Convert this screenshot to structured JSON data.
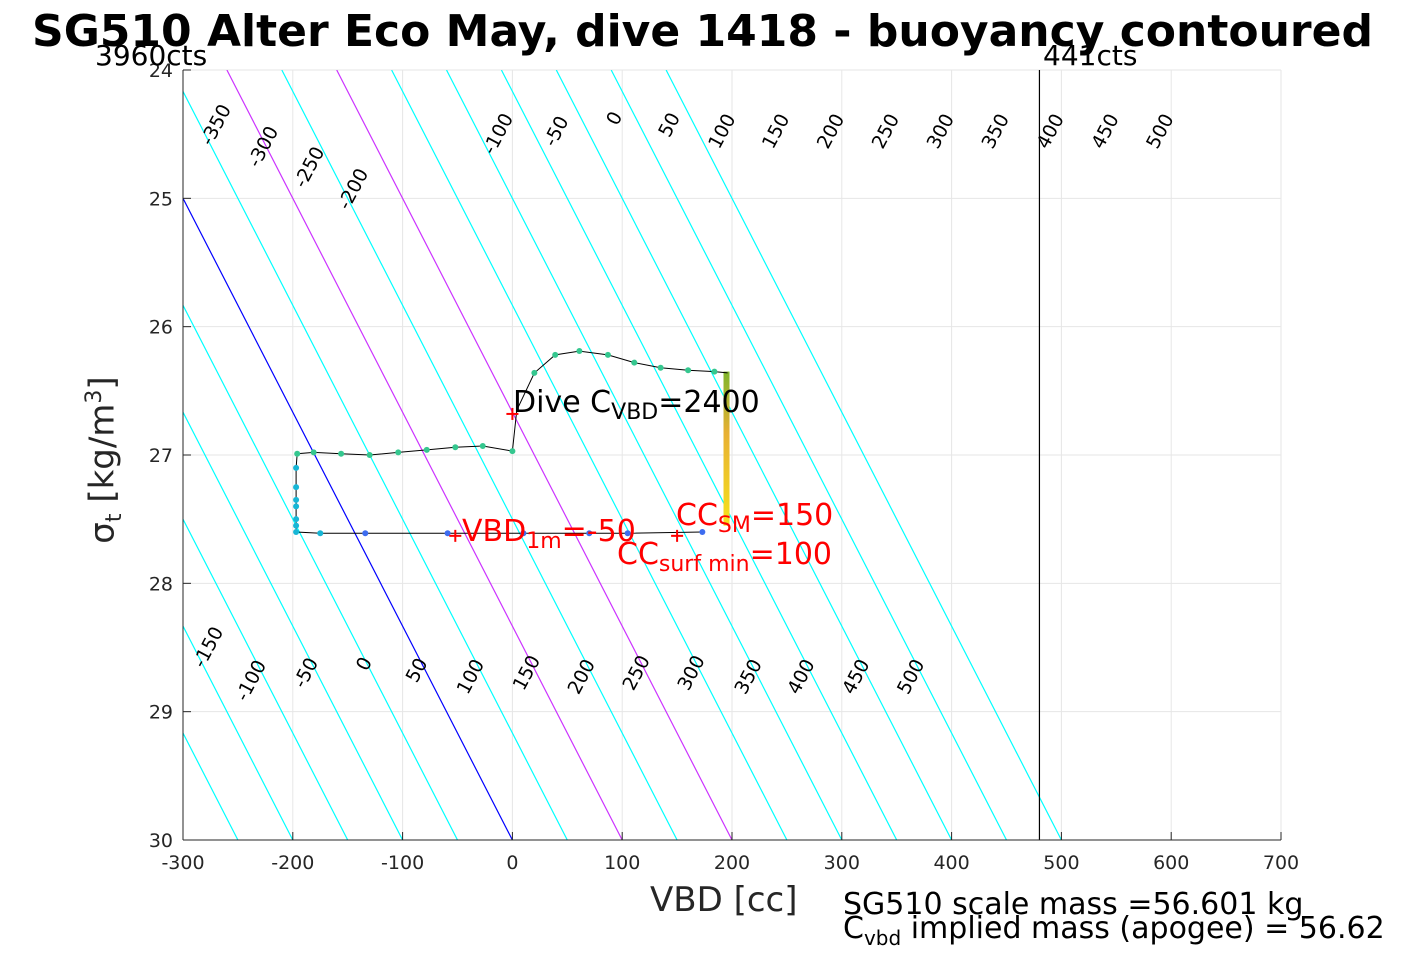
{
  "title": "SG510 Alter Eco May, dive 1418 - buoyancy contoured",
  "counts": {
    "left": "3960cts",
    "right": "441cts"
  },
  "axes": {
    "xlabel": "VBD [cc]",
    "ylabel_prefix": "σ",
    "ylabel_sub": "t",
    "ylabel_unit_open": " [kg/m",
    "ylabel_sup": "3",
    "ylabel_unit_close": "]"
  },
  "annotations": {
    "dive_cvbd": {
      "prefix": "Dive C",
      "sub": "VBD",
      "suffix": "=2400"
    },
    "vbd_1m": {
      "prefix": "VBD",
      "sub": "1m",
      "suffix": "=-50"
    },
    "cc_sm": {
      "prefix": "CC",
      "sub": "SM",
      "suffix": "=150"
    },
    "cc_surf": {
      "prefix": "CC",
      "sub": "surf min",
      "suffix": "=100"
    }
  },
  "footer": {
    "line1": "SG510 scale mass =56.601 kg",
    "line2_prefix": "C",
    "line2_sub": "vbd",
    "line2_suffix": " implied mass (apogee) = 56.62"
  },
  "colors": {
    "contour": "#00ffff",
    "zero_contour": "#0000ff",
    "highlight_contour": "#cc33ff",
    "trajectory": "#000000",
    "annotation_red": "#ff0000",
    "grid": "#e6e6e6"
  },
  "chart_data": {
    "type": "scatter",
    "xlim": [
      -300,
      700
    ],
    "ylim": [
      24,
      30
    ],
    "y_reversed": true,
    "xticks": [
      -300,
      -200,
      -100,
      0,
      100,
      200,
      300,
      400,
      500,
      600,
      700
    ],
    "yticks": [
      24,
      25,
      26,
      27,
      28,
      29,
      30
    ],
    "grid": true,
    "contours": {
      "levels": [
        -350,
        -300,
        -250,
        -200,
        -150,
        -100,
        -50,
        0,
        50,
        100,
        150,
        200,
        250,
        300,
        350,
        400,
        450,
        500
      ],
      "blue_level": 0,
      "magenta_levels": [
        100,
        200
      ],
      "slope_vbd_per_sigma": 60,
      "sigma_at_level": 30,
      "top_labels": [
        {
          "label": "-350",
          "x": -265,
          "y": 24.45
        },
        {
          "label": "-300",
          "x": -222,
          "y": 24.62
        },
        {
          "label": "-250",
          "x": -180,
          "y": 24.78
        },
        {
          "label": "-200",
          "x": -140,
          "y": 24.95
        },
        {
          "label": "-100",
          "x": -8,
          "y": 24.52
        },
        {
          "label": "-50",
          "x": 45,
          "y": 24.5
        },
        {
          "label": "0",
          "x": 98,
          "y": 24.4
        },
        {
          "label": "50",
          "x": 148,
          "y": 24.45
        },
        {
          "label": "100",
          "x": 196,
          "y": 24.5
        },
        {
          "label": "150",
          "x": 245,
          "y": 24.5
        },
        {
          "label": "200",
          "x": 295,
          "y": 24.5
        },
        {
          "label": "250",
          "x": 345,
          "y": 24.5
        },
        {
          "label": "300",
          "x": 395,
          "y": 24.5
        },
        {
          "label": "350",
          "x": 445,
          "y": 24.5
        },
        {
          "label": "400",
          "x": 495,
          "y": 24.5
        },
        {
          "label": "450",
          "x": 545,
          "y": 24.5
        },
        {
          "label": "500",
          "x": 595,
          "y": 24.5
        }
      ],
      "bottom_labels": [
        {
          "label": "-150",
          "x": -272,
          "y": 28.52
        },
        {
          "label": "-100",
          "x": -233,
          "y": 28.78
        },
        {
          "label": "-50",
          "x": -183,
          "y": 28.72
        },
        {
          "label": "0",
          "x": -130,
          "y": 28.65
        },
        {
          "label": "50",
          "x": -82,
          "y": 28.7
        },
        {
          "label": "100",
          "x": -33,
          "y": 28.75
        },
        {
          "label": "150",
          "x": 18,
          "y": 28.72
        },
        {
          "label": "200",
          "x": 68,
          "y": 28.75
        },
        {
          "label": "250",
          "x": 118,
          "y": 28.72
        },
        {
          "label": "300",
          "x": 168,
          "y": 28.72
        },
        {
          "label": "350",
          "x": 220,
          "y": 28.75
        },
        {
          "label": "400",
          "x": 268,
          "y": 28.75
        },
        {
          "label": "450",
          "x": 318,
          "y": 28.75
        },
        {
          "label": "500",
          "x": 368,
          "y": 28.75
        }
      ]
    },
    "vertical_line_x": 480,
    "trajectory": [
      {
        "x": 0,
        "y": 26.97
      },
      {
        "x": 4,
        "y": 26.65
      },
      {
        "x": 20,
        "y": 26.36
      },
      {
        "x": 39,
        "y": 26.22
      },
      {
        "x": 61,
        "y": 26.19
      },
      {
        "x": 87,
        "y": 26.22
      },
      {
        "x": 111,
        "y": 26.28
      },
      {
        "x": 135,
        "y": 26.32
      },
      {
        "x": 160,
        "y": 26.34
      },
      {
        "x": 184,
        "y": 26.35
      },
      {
        "x": 196,
        "y": 26.36
      }
    ],
    "trajectory2": [
      {
        "x": 0,
        "y": 26.97
      },
      {
        "x": -27,
        "y": 26.93
      },
      {
        "x": -52,
        "y": 26.94
      },
      {
        "x": -78,
        "y": 26.96
      },
      {
        "x": -104,
        "y": 26.98
      },
      {
        "x": -130,
        "y": 27.0
      },
      {
        "x": -156,
        "y": 26.99
      },
      {
        "x": -181,
        "y": 26.98
      },
      {
        "x": -196,
        "y": 26.99
      },
      {
        "x": -197,
        "y": 27.1
      },
      {
        "x": -197,
        "y": 27.25
      },
      {
        "x": -197,
        "y": 27.38
      },
      {
        "x": -197,
        "y": 27.5
      },
      {
        "x": -197,
        "y": 27.6
      },
      {
        "x": -175,
        "y": 27.61
      },
      {
        "x": -134,
        "y": 27.61
      },
      {
        "x": -59,
        "y": 27.61
      },
      {
        "x": 10,
        "y": 27.61
      },
      {
        "x": 70,
        "y": 27.61
      },
      {
        "x": 105,
        "y": 27.61
      },
      {
        "x": 173,
        "y": 27.6
      }
    ],
    "green_points": [
      {
        "x": 0,
        "y": 26.97
      },
      {
        "x": 20,
        "y": 26.36
      },
      {
        "x": 39,
        "y": 26.22
      },
      {
        "x": 61,
        "y": 26.19
      },
      {
        "x": 87,
        "y": 26.22
      },
      {
        "x": 111,
        "y": 26.28
      },
      {
        "x": 135,
        "y": 26.32
      },
      {
        "x": 160,
        "y": 26.34
      },
      {
        "x": 184,
        "y": 26.35
      },
      {
        "x": -27,
        "y": 26.93
      },
      {
        "x": -52,
        "y": 26.94
      },
      {
        "x": -78,
        "y": 26.96
      },
      {
        "x": -104,
        "y": 26.98
      },
      {
        "x": -130,
        "y": 27.0
      },
      {
        "x": -156,
        "y": 26.99
      },
      {
        "x": -181,
        "y": 26.98
      },
      {
        "x": -196,
        "y": 26.99
      }
    ],
    "cyan_points": [
      {
        "x": -197,
        "y": 27.1
      },
      {
        "x": -197,
        "y": 27.25
      },
      {
        "x": -197,
        "y": 27.35
      },
      {
        "x": -197,
        "y": 27.4
      },
      {
        "x": -197,
        "y": 27.5
      },
      {
        "x": -197,
        "y": 27.55
      },
      {
        "x": -197,
        "y": 27.6
      },
      {
        "x": -175,
        "y": 27.61
      }
    ],
    "blue_points": [
      {
        "x": -134,
        "y": 27.61
      },
      {
        "x": -59,
        "y": 27.61
      },
      {
        "x": 10,
        "y": 27.61
      },
      {
        "x": 70,
        "y": 27.61
      },
      {
        "x": 105,
        "y": 27.61
      },
      {
        "x": 173,
        "y": 27.6
      }
    ],
    "surface_bar": {
      "x": 195,
      "y_top": 26.35,
      "y_bottom": 27.55
    },
    "red_markers": [
      {
        "x": 0,
        "y": 26.68
      },
      {
        "x": -52,
        "y": 27.63
      },
      {
        "x": 150,
        "y": 27.63
      }
    ]
  }
}
